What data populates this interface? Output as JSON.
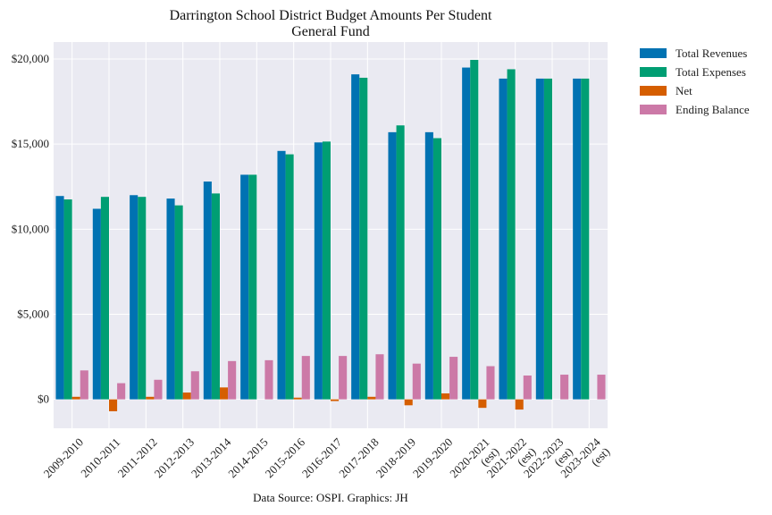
{
  "chart_data": {
    "type": "bar",
    "title": "Darrington School District Budget Amounts Per Student",
    "subtitle": "General Fund",
    "source_note": "Data Source: OSPI. Graphics: JH",
    "xlabel": "",
    "ylabel": "",
    "ylim": [
      -1700,
      21000
    ],
    "yticks": [
      0,
      5000,
      10000,
      15000,
      20000
    ],
    "ytick_labels": [
      "$0",
      "$5,000",
      "$10,000",
      "$15,000",
      "$20,000"
    ],
    "grid": true,
    "legend_position": "outside top-right",
    "categories": [
      [
        "2009-2010"
      ],
      [
        "2010-2011"
      ],
      [
        "2011-2012"
      ],
      [
        "2012-2013"
      ],
      [
        "2013-2014"
      ],
      [
        "2014-2015"
      ],
      [
        "2015-2016"
      ],
      [
        "2016-2017"
      ],
      [
        "2017-2018"
      ],
      [
        "2018-2019"
      ],
      [
        "2019-2020"
      ],
      [
        "2020-2021",
        "(est)"
      ],
      [
        "2021-2022",
        "(est)"
      ],
      [
        "2022-2023",
        "(est)"
      ],
      [
        "2023-2024",
        "(est)"
      ]
    ],
    "series": [
      {
        "name": "Total Revenues",
        "color": "#0072B2",
        "values": [
          11950,
          11200,
          12000,
          11800,
          12800,
          13200,
          14600,
          15100,
          19100,
          15700,
          15700,
          19500,
          18850,
          18850,
          18850
        ]
      },
      {
        "name": "Total Expenses",
        "color": "#009E73",
        "values": [
          11750,
          11900,
          11900,
          11400,
          12100,
          13200,
          14400,
          15150,
          18900,
          16100,
          15350,
          19950,
          19400,
          18850,
          18850
        ]
      },
      {
        "name": "Net",
        "color": "#D55E00",
        "values": [
          150,
          -700,
          150,
          400,
          700,
          0,
          100,
          -100,
          150,
          -350,
          350,
          -500,
          -600,
          0,
          0
        ]
      },
      {
        "name": "Ending Balance",
        "color": "#CC79A7",
        "values": [
          1700,
          950,
          1150,
          1650,
          2250,
          2300,
          2550,
          2550,
          2650,
          2100,
          2500,
          1950,
          1400,
          1450,
          1450
        ]
      }
    ]
  }
}
